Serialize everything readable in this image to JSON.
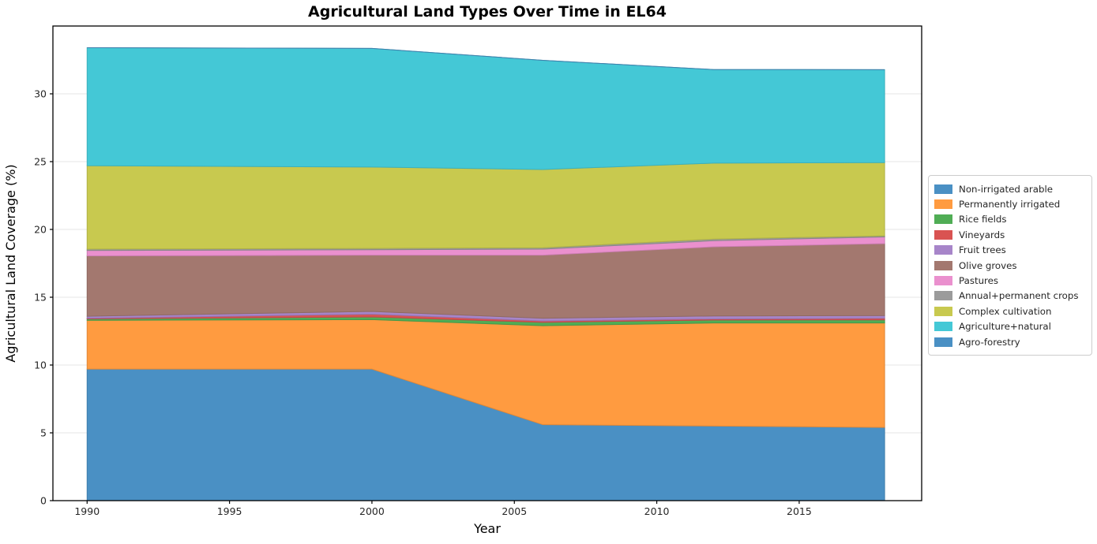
{
  "figure": {
    "title": "Agricultural Land Types Over Time in EL64",
    "xlabel": "Year",
    "ylabel": "Agricultural Land Coverage (%)",
    "background_color": "#ffffff",
    "gridline_color": "#e6e6e6",
    "axis_color": "#000000",
    "tick_label_color": "#262626"
  },
  "chart_data": {
    "type": "area",
    "stacked": true,
    "title": "Agricultural Land Types Over Time in EL64",
    "xlabel": "Year",
    "ylabel": "Agricultural Land Coverage (%)",
    "x": [
      1990,
      2000,
      2006,
      2012,
      2018
    ],
    "series": [
      {
        "name": "Non-irrigated arable",
        "color": "#4a90c4",
        "values": [
          9.7,
          9.7,
          5.6,
          5.5,
          5.4
        ]
      },
      {
        "name": "Permanently irrigated",
        "color": "#ff9b40",
        "values": [
          3.6,
          3.65,
          7.3,
          7.6,
          7.7
        ]
      },
      {
        "name": "Rice fields",
        "color": "#50ad55",
        "values": [
          0.1,
          0.2,
          0.25,
          0.22,
          0.23
        ]
      },
      {
        "name": "Vineyards",
        "color": "#d95352",
        "values": [
          0.05,
          0.2,
          0.1,
          0.08,
          0.12
        ]
      },
      {
        "name": "Fruit trees",
        "color": "#a785c9",
        "values": [
          0.15,
          0.2,
          0.2,
          0.22,
          0.2
        ]
      },
      {
        "name": "Olive groves",
        "color": "#a3786f",
        "values": [
          4.45,
          4.15,
          4.65,
          5.1,
          5.3
        ]
      },
      {
        "name": "Pastures",
        "color": "#ea90ce",
        "values": [
          0.4,
          0.4,
          0.45,
          0.45,
          0.5
        ]
      },
      {
        "name": "Annual+permanent crops",
        "color": "#9b9b9b",
        "values": [
          0.1,
          0.1,
          0.1,
          0.12,
          0.08
        ]
      },
      {
        "name": "Complex cultivation",
        "color": "#c8c94f",
        "values": [
          6.15,
          6.0,
          5.77,
          5.6,
          5.4
        ]
      },
      {
        "name": "Agriculture+natural",
        "color": "#44c8d6",
        "values": [
          8.7,
          8.75,
          8.05,
          6.9,
          6.85
        ]
      },
      {
        "name": "Agro-forestry",
        "color": "#4a90c4",
        "values": [
          0,
          0,
          0,
          0,
          0
        ]
      }
    ],
    "xlim": [
      1988.8,
      2019.3
    ],
    "ylim": [
      0,
      35
    ],
    "xticks": [
      "1990",
      "1995",
      "2000",
      "2005",
      "2010",
      "2015"
    ],
    "xtick_values": [
      1990,
      1995,
      2000,
      2005,
      2010,
      2015
    ],
    "yticks": [
      "0",
      "5",
      "10",
      "15",
      "20",
      "25",
      "30"
    ],
    "ytick_values": [
      0,
      5,
      10,
      15,
      20,
      25,
      30
    ],
    "grid": "horizontal",
    "legend_position": "right-outside",
    "legend_entries": [
      "Non-irrigated arable",
      "Permanently irrigated",
      "Rice fields",
      "Vineyards",
      "Fruit trees",
      "Olive groves",
      "Pastures",
      "Annual+permanent crops",
      "Complex cultivation",
      "Agriculture+natural",
      "Agro-forestry"
    ]
  }
}
